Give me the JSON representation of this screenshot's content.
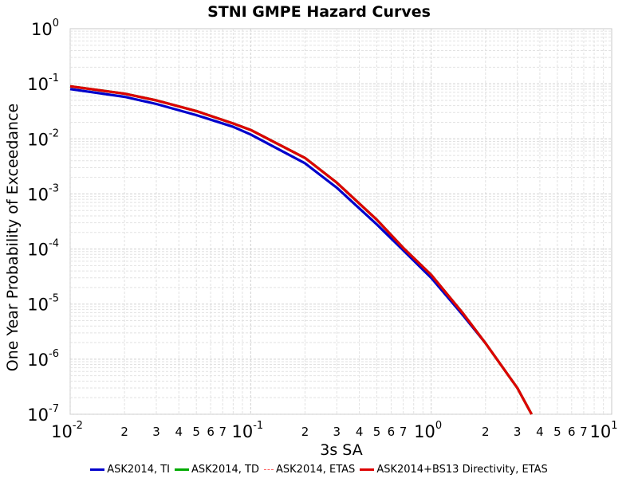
{
  "chart_data": {
    "type": "line",
    "title": "STNI GMPE Hazard Curves",
    "xlabel": "3s SA",
    "ylabel": "One Year Probability of Exceedance",
    "xscale": "log",
    "yscale": "log",
    "xlim": [
      0.01,
      10
    ],
    "ylim": [
      1e-07,
      1
    ],
    "x_major_ticks": [
      {
        "base": "10",
        "exp": "-2"
      },
      {
        "base": "10",
        "exp": "-1"
      },
      {
        "base": "10",
        "exp": "0"
      },
      {
        "base": "10",
        "exp": "1"
      }
    ],
    "y_major_ticks": [
      {
        "base": "10",
        "exp": "-7"
      },
      {
        "base": "10",
        "exp": "-6"
      },
      {
        "base": "10",
        "exp": "-5"
      },
      {
        "base": "10",
        "exp": "-4"
      },
      {
        "base": "10",
        "exp": "-3"
      },
      {
        "base": "10",
        "exp": "-2"
      },
      {
        "base": "10",
        "exp": "-1"
      },
      {
        "base": "10",
        "exp": "0"
      }
    ],
    "x_minor_tick_labels": [
      "2",
      "3",
      "4",
      "5",
      "6",
      "7"
    ],
    "grid": true,
    "legend_position": "bottom",
    "series": [
      {
        "name": "ASK2014, TI",
        "color": "#0000cc",
        "style": "solid",
        "x": [
          0.01,
          0.02,
          0.03,
          0.05,
          0.08,
          0.1,
          0.2,
          0.3,
          0.5,
          0.7,
          1.0,
          1.5,
          2.0
        ],
        "y": [
          0.08,
          0.058,
          0.043,
          0.027,
          0.0165,
          0.012,
          0.0036,
          0.0013,
          0.00028,
          9.5e-05,
          3e-05,
          6.3e-06,
          1.95e-06
        ]
      },
      {
        "name": "ASK2014, TD",
        "color": "#00aa00",
        "style": "solid",
        "x": [
          0.01,
          0.02,
          0.03,
          0.05,
          0.08,
          0.1,
          0.2,
          0.3,
          0.5,
          0.7,
          1.0,
          1.5,
          2.0,
          3.0,
          3.6
        ],
        "y": [
          0.09,
          0.066,
          0.05,
          0.032,
          0.019,
          0.0145,
          0.0045,
          0.0016,
          0.00034,
          0.000105,
          3.4e-05,
          6.8e-06,
          1.95e-06,
          3e-07,
          1e-07
        ]
      },
      {
        "name": "ASK2014, ETAS",
        "color": "#ff6666",
        "style": "dashed",
        "x": [
          0.01,
          0.02,
          0.03,
          0.05,
          0.08,
          0.1,
          0.2,
          0.3,
          0.5,
          0.7,
          1.0,
          1.5,
          2.0,
          3.0,
          3.6
        ],
        "y": [
          0.09,
          0.066,
          0.05,
          0.032,
          0.019,
          0.0145,
          0.0045,
          0.0016,
          0.00034,
          0.000105,
          3.4e-05,
          6.8e-06,
          1.95e-06,
          3e-07,
          1e-07
        ]
      },
      {
        "name": "ASK2014+BS13 Directivity, ETAS",
        "color": "#dd0000",
        "style": "solid",
        "x": [
          0.01,
          0.02,
          0.03,
          0.05,
          0.08,
          0.1,
          0.2,
          0.3,
          0.5,
          0.7,
          1.0,
          1.5,
          2.0,
          3.0,
          3.6
        ],
        "y": [
          0.09,
          0.066,
          0.05,
          0.032,
          0.019,
          0.0145,
          0.0045,
          0.0016,
          0.00034,
          0.000105,
          3.4e-05,
          6.8e-06,
          1.95e-06,
          3e-07,
          1e-07
        ]
      }
    ]
  }
}
